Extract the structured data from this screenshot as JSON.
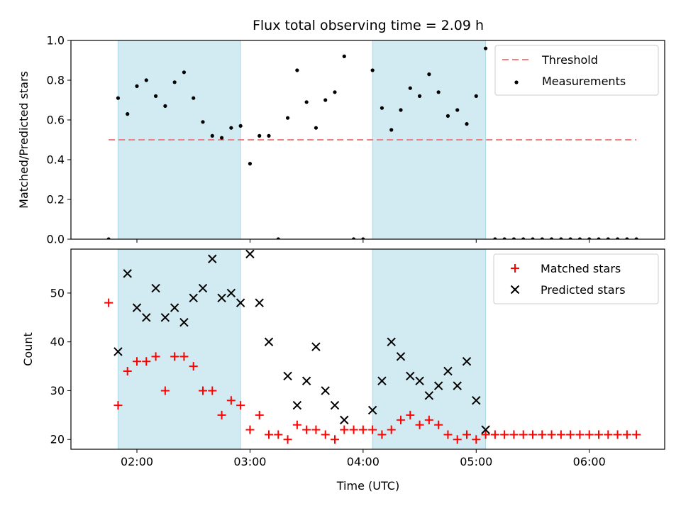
{
  "title": "Flux total observing time = 2.09 h",
  "colors": {
    "shade": "#add8e6",
    "threshold": "#f08080",
    "measurement": "#000000",
    "matched": "#ff0000",
    "predicted": "#000000"
  },
  "chart_data": [
    {
      "type": "scatter",
      "ylabel": "Matched/Predicted stars",
      "ylim": [
        0,
        1
      ],
      "yticks": [
        "0.0",
        "0.2",
        "0.4",
        "0.6",
        "0.8",
        "1.0"
      ],
      "legend": {
        "placement": "top-right",
        "entries": [
          "Threshold",
          "Measurements"
        ]
      },
      "threshold": {
        "name": "Threshold",
        "value": 0.5,
        "x_start": "01:45",
        "x_end": "06:25"
      },
      "shaded_intervals": [
        [
          "01:50",
          "02:55"
        ],
        [
          "04:05",
          "05:05"
        ]
      ],
      "series": [
        {
          "name": "Measurements",
          "x": [
            "01:45",
            "01:50",
            "01:55",
            "02:00",
            "02:05",
            "02:10",
            "02:15",
            "02:20",
            "02:25",
            "02:30",
            "02:35",
            "02:40",
            "02:45",
            "02:50",
            "02:55",
            "03:00",
            "03:05",
            "03:10",
            "03:15",
            "03:20",
            "03:25",
            "03:30",
            "03:35",
            "03:40",
            "03:45",
            "03:50",
            "03:55",
            "04:00",
            "04:05",
            "04:10",
            "04:15",
            "04:20",
            "04:25",
            "04:30",
            "04:35",
            "04:40",
            "04:45",
            "04:50",
            "04:55",
            "05:00",
            "05:05",
            "05:10",
            "05:15",
            "05:20",
            "05:25",
            "05:30",
            "05:35",
            "05:40",
            "05:45",
            "05:50",
            "05:55",
            "06:00",
            "06:05",
            "06:10",
            "06:15",
            "06:20",
            "06:25"
          ],
          "y": [
            0,
            0.71,
            0.63,
            0.77,
            0.8,
            0.72,
            0.67,
            0.79,
            0.84,
            0.71,
            0.59,
            0.52,
            0.51,
            0.56,
            0.57,
            0.38,
            0.52,
            0.52,
            0,
            0.61,
            0.85,
            0.69,
            0.56,
            0.7,
            0.74,
            0.92,
            0,
            0,
            0.85,
            0.66,
            0.55,
            0.65,
            0.76,
            0.72,
            0.83,
            0.74,
            0.62,
            0.65,
            0.58,
            0.72,
            0.96,
            0,
            0,
            0,
            0,
            0,
            0,
            0,
            0,
            0,
            0,
            0,
            0,
            0,
            0,
            0,
            0
          ]
        }
      ]
    },
    {
      "type": "scatter",
      "xlabel": "Time (UTC)",
      "ylabel": "Count",
      "ylim": [
        18,
        59
      ],
      "yticks": [
        "20",
        "30",
        "40",
        "50"
      ],
      "xticks": [
        "02:00",
        "03:00",
        "04:00",
        "05:00",
        "06:00"
      ],
      "legend": {
        "placement": "top-right",
        "entries": [
          "Matched stars",
          "Predicted stars"
        ]
      },
      "shaded_intervals": [
        [
          "01:50",
          "02:55"
        ],
        [
          "04:05",
          "05:05"
        ]
      ],
      "series": [
        {
          "name": "Matched stars",
          "x": [
            "01:45",
            "01:50",
            "01:55",
            "02:00",
            "02:05",
            "02:10",
            "02:15",
            "02:20",
            "02:25",
            "02:30",
            "02:35",
            "02:40",
            "02:45",
            "02:50",
            "02:55",
            "03:00",
            "03:05",
            "03:10",
            "03:15",
            "03:20",
            "03:25",
            "03:30",
            "03:35",
            "03:40",
            "03:45",
            "03:50",
            "03:55",
            "04:00",
            "04:05",
            "04:10",
            "04:15",
            "04:20",
            "04:25",
            "04:30",
            "04:35",
            "04:40",
            "04:45",
            "04:50",
            "04:55",
            "05:00",
            "05:05",
            "05:10",
            "05:15",
            "05:20",
            "05:25",
            "05:30",
            "05:35",
            "05:40",
            "05:45",
            "05:50",
            "05:55",
            "06:00",
            "06:05",
            "06:10",
            "06:15",
            "06:20",
            "06:25"
          ],
          "y": [
            48,
            27,
            34,
            36,
            36,
            37,
            30,
            37,
            37,
            35,
            30,
            30,
            25,
            28,
            27,
            22,
            25,
            21,
            21,
            20,
            23,
            22,
            22,
            21,
            20,
            22,
            22,
            22,
            22,
            21,
            22,
            24,
            25,
            23,
            24,
            23,
            21,
            20,
            21,
            20,
            21,
            21,
            21,
            21,
            21,
            21,
            21,
            21,
            21,
            21,
            21,
            21,
            21,
            21,
            21,
            21,
            21
          ]
        },
        {
          "name": "Predicted stars",
          "x": [
            "01:50",
            "01:55",
            "02:00",
            "02:05",
            "02:10",
            "02:15",
            "02:20",
            "02:25",
            "02:30",
            "02:35",
            "02:40",
            "02:45",
            "02:50",
            "02:55",
            "03:00",
            "03:05",
            "03:10",
            "03:20",
            "03:25",
            "03:30",
            "03:35",
            "03:40",
            "03:45",
            "03:50",
            "04:05",
            "04:10",
            "04:15",
            "04:20",
            "04:25",
            "04:30",
            "04:35",
            "04:40",
            "04:45",
            "04:50",
            "04:55",
            "05:00",
            "05:05"
          ],
          "y": [
            38,
            54,
            47,
            45,
            51,
            45,
            47,
            44,
            49,
            51,
            57,
            49,
            50,
            48,
            58,
            48,
            40,
            33,
            27,
            32,
            39,
            30,
            27,
            24,
            26,
            32,
            40,
            37,
            33,
            32,
            29,
            31,
            34,
            31,
            36,
            28,
            22
          ]
        }
      ]
    }
  ]
}
